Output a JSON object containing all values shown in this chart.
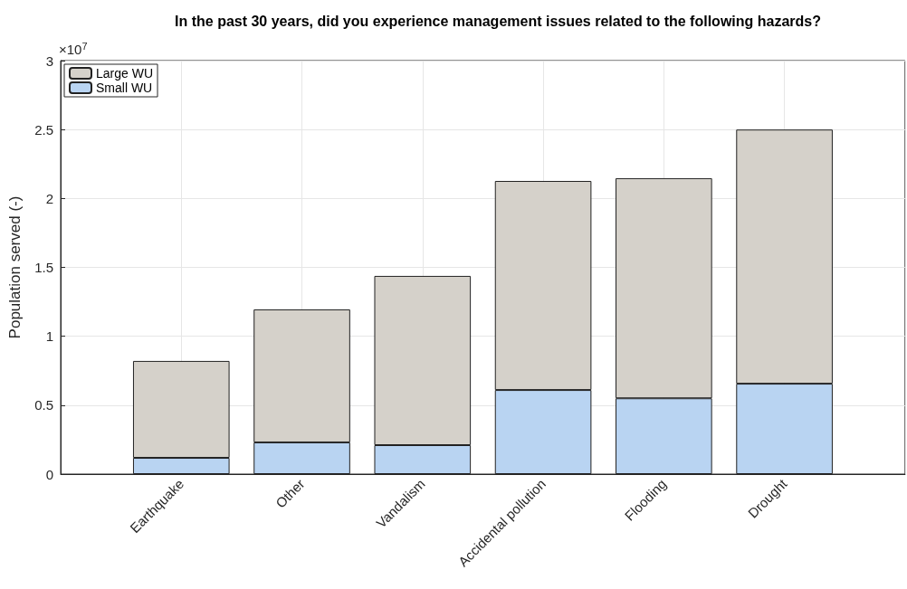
{
  "chart_data": {
    "type": "bar",
    "title": "In the past 30 years, did you experience management issues related to the following hazards?",
    "ylabel": "Population served (-)",
    "annotations": [
      "×10$^{7}$"
    ],
    "categories": [
      "Earthquake",
      "Other",
      "Vandalism",
      "Accidental pollution",
      "Flooding",
      "Drought"
    ],
    "stacked": true,
    "series": [
      {
        "name": "Small WU",
        "color": "#b9d4f2",
        "values": [
          0.118,
          0.23,
          0.21,
          0.61,
          0.55,
          0.656
        ]
      },
      {
        "name": "Large WU",
        "color": "#d5d1ca",
        "values": [
          0.703,
          0.965,
          1.228,
          1.517,
          1.597,
          1.844
        ]
      }
    ],
    "ylim": [
      0,
      3
    ],
    "yticks": [
      0,
      0.5,
      1,
      1.5,
      2,
      2.5,
      3
    ],
    "grid": true,
    "legend": "top left"
  }
}
